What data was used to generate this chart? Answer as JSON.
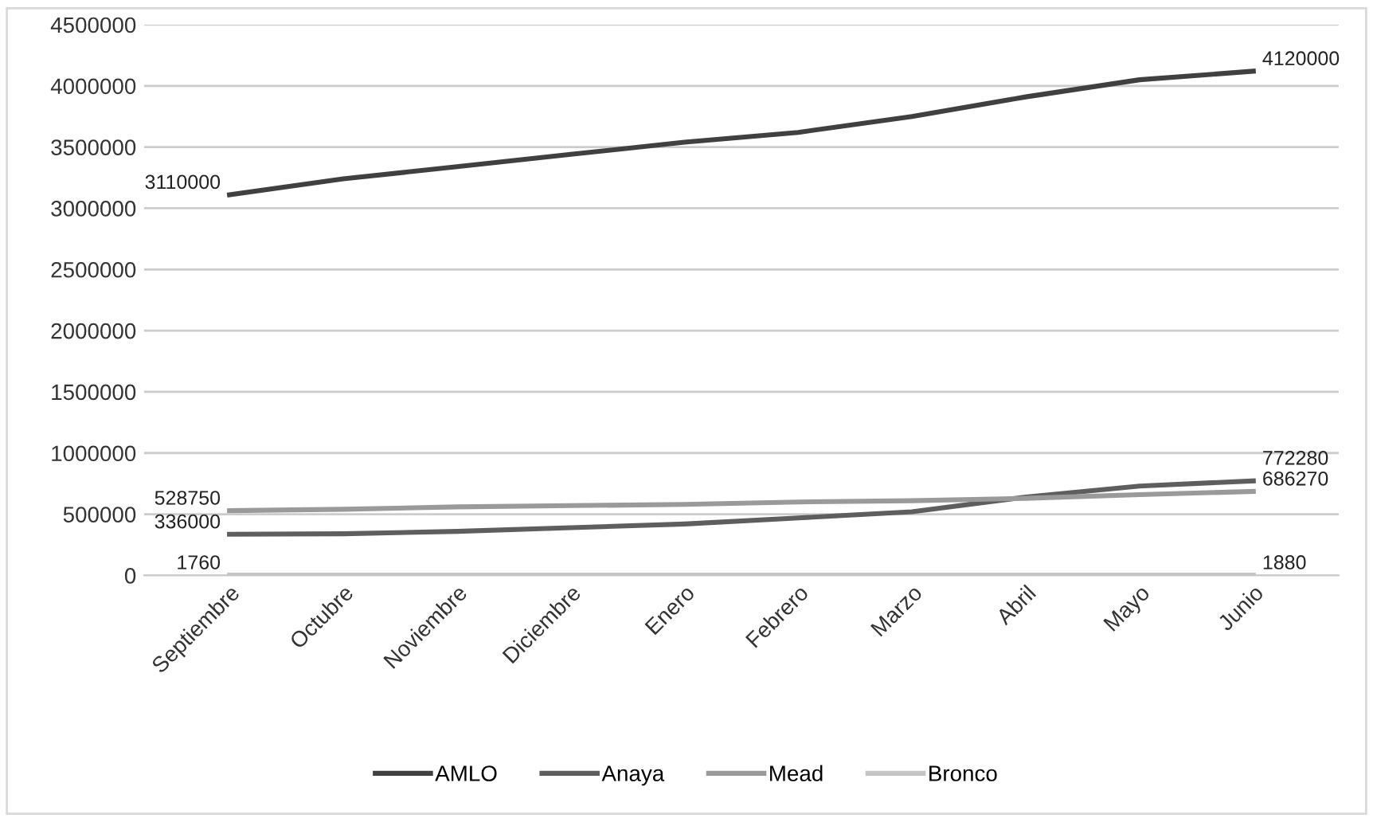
{
  "chart_data": {
    "type": "line",
    "categories": [
      "Septiembre",
      "Octubre",
      "Noviembre",
      "Diciembre",
      "Enero",
      "Febrero",
      "Marzo",
      "Abril",
      "Mayo",
      "Junio"
    ],
    "series": [
      {
        "name": "AMLO",
        "color": "#404040",
        "values": [
          3110000,
          3240000,
          3340000,
          3440000,
          3540000,
          3620000,
          3750000,
          3910000,
          4050000,
          4120000
        ],
        "value_labels": [
          "3110000",
          null,
          null,
          null,
          null,
          null,
          null,
          null,
          null,
          "4120000"
        ]
      },
      {
        "name": "Anaya",
        "color": "#5e5e5e",
        "values": [
          336000,
          340000,
          360000,
          390000,
          420000,
          470000,
          520000,
          640000,
          730000,
          772280
        ],
        "value_labels": [
          "336000",
          null,
          null,
          null,
          null,
          null,
          null,
          null,
          null,
          "772280"
        ]
      },
      {
        "name": "Mead",
        "color": "#9a9a9a",
        "values": [
          528750,
          540000,
          560000,
          570000,
          580000,
          600000,
          610000,
          630000,
          660000,
          686270
        ],
        "value_labels": [
          "528750",
          null,
          null,
          null,
          null,
          null,
          null,
          null,
          null,
          "686270"
        ]
      },
      {
        "name": "Bronco",
        "color": "#c4c4c4",
        "values": [
          1760,
          2000,
          2000,
          2000,
          2000,
          2000,
          2000,
          2000,
          2000,
          1880
        ],
        "value_labels": [
          "1760",
          null,
          null,
          null,
          null,
          null,
          null,
          null,
          null,
          "1880"
        ]
      }
    ],
    "ylim": [
      0,
      4500000
    ],
    "yticks": [
      0,
      500000,
      1000000,
      1500000,
      2000000,
      2500000,
      3000000,
      3500000,
      4000000,
      4500000
    ],
    "grid": "y",
    "legend": "bottom",
    "marker": "none",
    "line_style": "solid"
  }
}
